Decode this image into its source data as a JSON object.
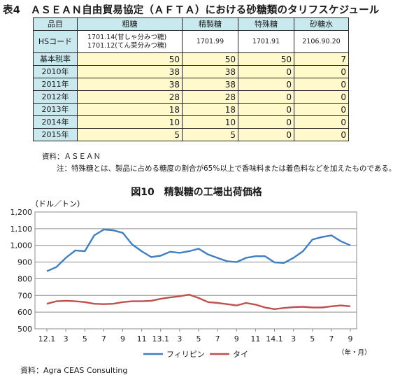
{
  "table": {
    "title": "表4　ＡＳＥＡＮ自由貿易協定（ＡＦＴＡ）における砂糖類のタリフスケジュール",
    "headers": [
      "品目",
      "粗糖",
      "精製糖",
      "特殊糖",
      "砂糖水"
    ],
    "hs_row": {
      "label": "HSコード",
      "raw_sugar": [
        "1701.14(甘しゃ分みつ糖)",
        "1701.12(てん菜分みつ糖)"
      ],
      "refined": "1701.99",
      "special": "1701.91",
      "syrup": "2106.90.20"
    },
    "rows": [
      {
        "label": "基本税率",
        "values": [
          "50",
          "50",
          "50",
          "7"
        ]
      },
      {
        "label": "2010年",
        "values": [
          "38",
          "38",
          "0",
          "0"
        ]
      },
      {
        "label": "2011年",
        "values": [
          "38",
          "38",
          "0",
          "0"
        ]
      },
      {
        "label": "2012年",
        "values": [
          "28",
          "28",
          "0",
          "0"
        ]
      },
      {
        "label": "2013年",
        "values": [
          "18",
          "18",
          "0",
          "0"
        ]
      },
      {
        "label": "2014年",
        "values": [
          "10",
          "10",
          "0",
          "0"
        ]
      },
      {
        "label": "2015年",
        "values": [
          "5",
          "5",
          "0",
          "0"
        ]
      }
    ],
    "source": "資料：ＡＳＥＡＮ",
    "note": "注：特殊糖とは、製品に占める糖度の割合が65%以上で香味料または着色料などを加えたものである。"
  },
  "chart_data": {
    "type": "line",
    "title": "図10　精製糖の工場出荷価格",
    "ylabel": "（ドル／トン）",
    "xlabel": "（年・月）",
    "ylim": [
      500,
      1200
    ],
    "yticks": [
      "500",
      "600",
      "700",
      "800",
      "900",
      "1,000",
      "1,100",
      "1,200"
    ],
    "ytick_values": [
      500,
      600,
      700,
      800,
      900,
      1000,
      1100,
      1200
    ],
    "xticks": [
      "12.1",
      "3",
      "5",
      "7",
      "9",
      "11",
      "13.1",
      "3",
      "5",
      "7",
      "9",
      "11",
      "14.1",
      "3",
      "5",
      "7",
      "9"
    ],
    "xtick_positions": [
      0,
      2,
      4,
      6,
      8,
      10,
      12,
      14,
      16,
      18,
      20,
      22,
      24,
      26,
      28,
      30,
      32
    ],
    "x_count": 33,
    "grid": true,
    "legend_position": "bottom",
    "series": [
      {
        "name": "フィリピン",
        "color": "#3f7fc0",
        "values": [
          845,
          870,
          925,
          970,
          965,
          1060,
          1095,
          1090,
          1075,
          1005,
          965,
          930,
          938,
          962,
          955,
          965,
          980,
          945,
          925,
          905,
          900,
          925,
          935,
          935,
          898,
          895,
          925,
          965,
          1035,
          1050,
          1060,
          1025,
          1000
        ]
      },
      {
        "name": "タイ",
        "color": "#c0504d",
        "values": [
          650,
          665,
          668,
          665,
          660,
          650,
          648,
          650,
          660,
          665,
          665,
          668,
          680,
          688,
          695,
          705,
          685,
          660,
          655,
          648,
          640,
          655,
          645,
          628,
          618,
          625,
          630,
          632,
          628,
          628,
          635,
          640,
          635
        ]
      }
    ],
    "source": "資料：Agra CEAS Consulting"
  }
}
